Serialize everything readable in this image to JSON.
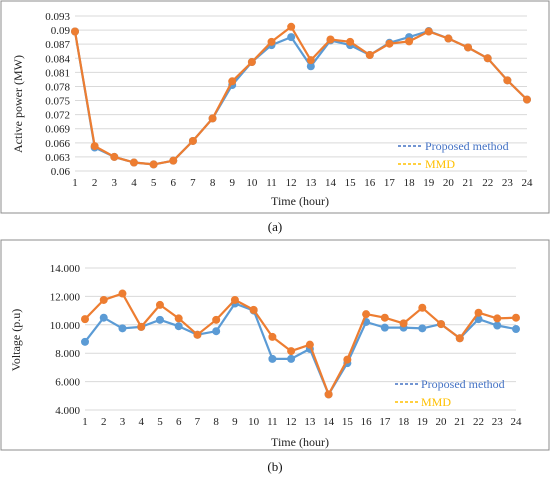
{
  "colors": {
    "proposed": "#5B9BD5",
    "mmd": "#ED7D31",
    "legend_proposed": "#4472C4",
    "legend_mmd": "#FFC000",
    "grid": "#d9d9d9",
    "frame": "#8c8c8c"
  },
  "chart_data": [
    {
      "type": "line",
      "xlabel": "Time (hour)",
      "ylabel": "Active power (MW)",
      "caption": "(a)",
      "x": [
        1,
        2,
        3,
        4,
        5,
        6,
        7,
        8,
        9,
        10,
        11,
        12,
        13,
        14,
        15,
        16,
        17,
        18,
        19,
        20,
        21,
        22,
        23,
        24
      ],
      "ylim": [
        0.06,
        0.093
      ],
      "y_ticks": [
        "0.06",
        "0.063",
        "0.066",
        "0.069",
        "0.072",
        "0.075",
        "0.078",
        "0.081",
        "0.084",
        "0.087",
        "0.09",
        "0.093"
      ],
      "grid": true,
      "legend_position": "bottom-right",
      "series": [
        {
          "name": "Proposed method",
          "values": [
            0.0897,
            0.065,
            0.063,
            0.0618,
            0.0614,
            0.0622,
            0.0664,
            0.0712,
            0.0783,
            0.0832,
            0.0868,
            0.0885,
            0.0823,
            0.0878,
            0.0868,
            0.0847,
            0.0873,
            0.0885,
            0.0898,
            0.0882,
            0.0863,
            0.084,
            0.0793,
            0.0752
          ]
        },
        {
          "name": "MMD",
          "values": [
            0.0897,
            0.0653,
            0.063,
            0.0618,
            0.0614,
            0.0622,
            0.0664,
            0.0712,
            0.0791,
            0.0832,
            0.0875,
            0.0907,
            0.0836,
            0.088,
            0.0875,
            0.0847,
            0.0871,
            0.0876,
            0.0897,
            0.0882,
            0.0863,
            0.084,
            0.0793,
            0.0752
          ]
        }
      ]
    },
    {
      "type": "line",
      "xlabel": "Time (hour)",
      "ylabel": "Voltage (p.u)",
      "caption": "(b)",
      "x": [
        1,
        2,
        3,
        4,
        5,
        6,
        7,
        8,
        9,
        10,
        11,
        12,
        13,
        14,
        15,
        16,
        17,
        18,
        19,
        20,
        21,
        22,
        23,
        24
      ],
      "ylim": [
        4.0,
        14.0
      ],
      "y_ticks": [
        "4.000",
        "6.000",
        "8.000",
        "10.000",
        "12.000",
        "14.000"
      ],
      "grid": true,
      "legend_position": "bottom-right",
      "series": [
        {
          "name": "Proposed method",
          "values": [
            8.8,
            10.5,
            9.75,
            9.85,
            10.35,
            9.9,
            9.3,
            9.55,
            11.5,
            11.0,
            7.6,
            7.6,
            8.3,
            5.1,
            7.3,
            10.2,
            9.8,
            9.8,
            9.75,
            10.05,
            9.05,
            10.4,
            9.95,
            9.7
          ]
        },
        {
          "name": "MMD",
          "values": [
            10.4,
            11.75,
            12.2,
            9.85,
            11.4,
            10.45,
            9.3,
            10.35,
            11.75,
            11.05,
            9.15,
            8.15,
            8.6,
            5.1,
            7.55,
            10.75,
            10.5,
            10.1,
            11.2,
            10.05,
            9.05,
            10.85,
            10.45,
            10.5
          ]
        }
      ]
    }
  ]
}
